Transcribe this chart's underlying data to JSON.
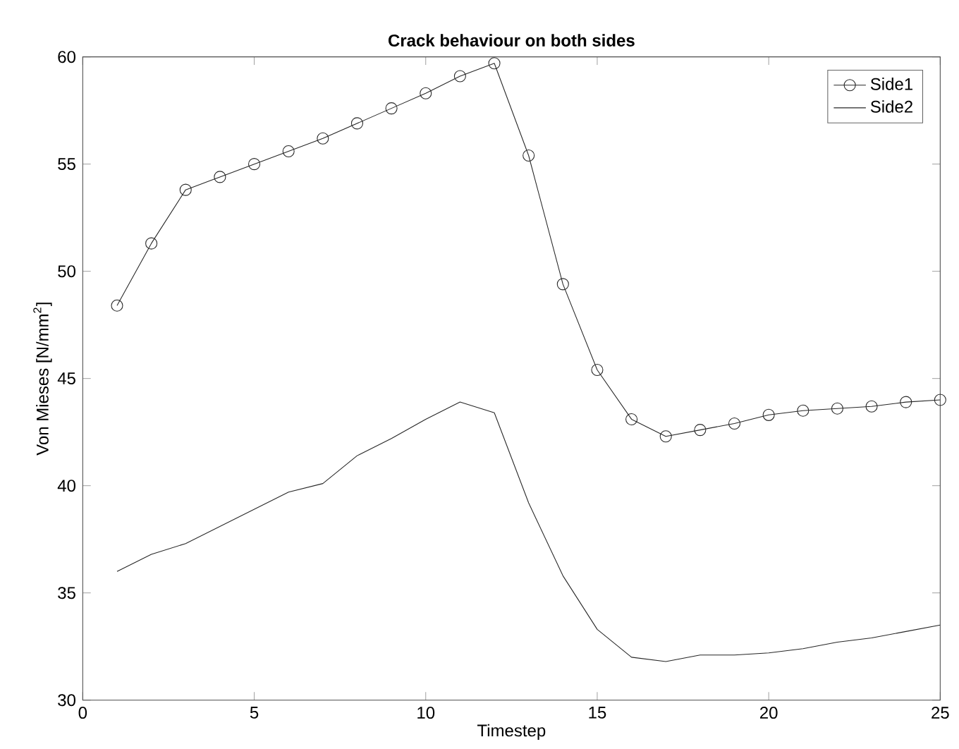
{
  "chart_data": {
    "type": "line",
    "title": "Crack behaviour on both sides",
    "xlabel": "Timestep",
    "ylabel": "Von Mieses [N/mm$^{2}$]",
    "x": [
      1,
      2,
      3,
      4,
      5,
      6,
      7,
      8,
      9,
      10,
      11,
      12,
      13,
      14,
      15,
      16,
      17,
      18,
      19,
      20,
      21,
      22,
      23,
      24,
      25
    ],
    "series": [
      {
        "name": "Side1",
        "color": "#262626",
        "marker": "circle",
        "values": [
          48.4,
          51.3,
          53.8,
          54.4,
          55.0,
          55.6,
          56.2,
          56.9,
          57.6,
          58.3,
          59.1,
          59.7,
          55.4,
          49.4,
          45.4,
          43.1,
          42.3,
          42.6,
          42.9,
          43.3,
          43.5,
          43.6,
          43.7,
          43.9,
          44.0
        ]
      },
      {
        "name": "Side2",
        "color": "#262626",
        "marker": "none",
        "values": [
          36.0,
          36.8,
          37.3,
          38.1,
          38.9,
          39.7,
          40.1,
          41.4,
          42.2,
          43.1,
          43.9,
          43.4,
          39.2,
          35.8,
          33.3,
          32.0,
          31.8,
          32.1,
          32.1,
          32.2,
          32.4,
          32.7,
          32.9,
          33.2,
          33.5
        ]
      }
    ],
    "xlim": [
      0,
      25
    ],
    "ylim": [
      30,
      60
    ],
    "xticks": [
      0,
      5,
      10,
      15,
      20,
      25
    ],
    "yticks": [
      30,
      35,
      40,
      45,
      50,
      55,
      60
    ],
    "grid": false,
    "legend": "top right",
    "line_style": "solid"
  }
}
